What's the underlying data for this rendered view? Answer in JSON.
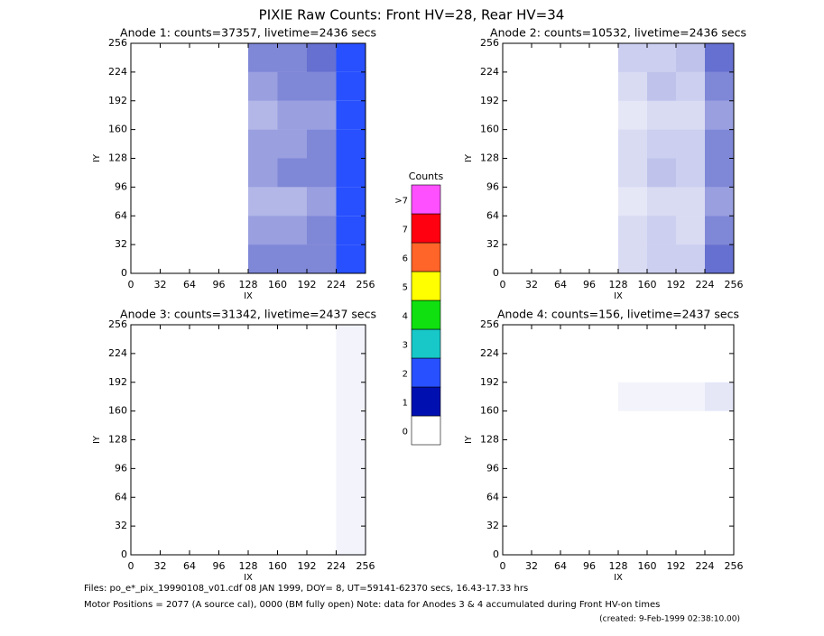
{
  "title": "PIXIE Raw Counts:  Front HV=28, Rear HV=34",
  "footer": [
    "Files: po_e*_pix_19990108_v01.cdf    08 JAN 1999, DOY=  8, UT=59141-62370 secs, 16.43-17.33 hrs",
    "Motor Positions = 2077 (A source cal), 0000 (BM fully open)    Note: data for Anodes 3 & 4 accumulated during Front HV-on times",
    "(created:  9-Feb-1999 02:38:10.00)"
  ],
  "chart_data": [
    {
      "type": "heatmap",
      "title": "Anode 1: counts=37357, livetime=2436 secs",
      "xlabel": "IX",
      "ylabel": "IY",
      "xlim": [
        0,
        256
      ],
      "ylim": [
        0,
        256
      ],
      "xticks": [
        0,
        32,
        64,
        96,
        128,
        160,
        192,
        224,
        256
      ],
      "yticks": [
        0,
        32,
        64,
        96,
        128,
        160,
        192,
        224,
        256
      ],
      "x_edges": [
        0,
        32,
        64,
        96,
        128,
        160,
        192,
        224,
        256
      ],
      "y_edges": [
        0,
        32,
        64,
        96,
        128,
        160,
        192,
        224,
        256
      ],
      "values": [
        [
          0,
          0,
          0,
          0,
          0.5,
          0.5,
          0.5,
          1.6
        ],
        [
          0,
          0,
          0,
          0,
          0.4,
          0.4,
          0.5,
          1.4
        ],
        [
          0,
          0,
          0,
          0,
          0.3,
          0.3,
          0.4,
          1.3
        ],
        [
          0,
          0,
          0,
          0,
          0.4,
          0.5,
          0.5,
          1.5
        ],
        [
          0,
          0,
          0,
          0,
          0.4,
          0.4,
          0.5,
          1.5
        ],
        [
          0,
          0,
          0,
          0,
          0.3,
          0.4,
          0.4,
          1.3
        ],
        [
          0,
          0,
          0,
          0,
          0.4,
          0.5,
          0.5,
          1.5
        ],
        [
          0,
          0,
          0,
          0,
          0.5,
          0.5,
          0.6,
          1.6
        ]
      ]
    },
    {
      "type": "heatmap",
      "title": "Anode 2: counts=10532, livetime=2436 secs",
      "xlabel": "IX",
      "ylabel": "IY",
      "xlim": [
        0,
        256
      ],
      "ylim": [
        0,
        256
      ],
      "xticks": [
        0,
        32,
        64,
        96,
        128,
        160,
        192,
        224,
        256
      ],
      "yticks": [
        0,
        32,
        64,
        96,
        128,
        160,
        192,
        224,
        256
      ],
      "x_edges": [
        0,
        32,
        64,
        96,
        128,
        160,
        192,
        224,
        256
      ],
      "y_edges": [
        0,
        32,
        64,
        96,
        128,
        160,
        192,
        224,
        256
      ],
      "values": [
        [
          0,
          0,
          0,
          0,
          0.15,
          0.2,
          0.2,
          0.6
        ],
        [
          0,
          0,
          0,
          0,
          0.15,
          0.2,
          0.15,
          0.5
        ],
        [
          0,
          0,
          0,
          0,
          0.1,
          0.15,
          0.15,
          0.4
        ],
        [
          0,
          0,
          0,
          0,
          0.15,
          0.25,
          0.2,
          0.5
        ],
        [
          0,
          0,
          0,
          0,
          0.15,
          0.2,
          0.2,
          0.5
        ],
        [
          0,
          0,
          0,
          0,
          0.1,
          0.15,
          0.15,
          0.4
        ],
        [
          0,
          0,
          0,
          0,
          0.15,
          0.25,
          0.2,
          0.5
        ],
        [
          0,
          0,
          0,
          0,
          0.2,
          0.2,
          0.25,
          0.6
        ]
      ]
    },
    {
      "type": "heatmap",
      "title": "Anode 3: counts=31342, livetime=2437 secs",
      "xlabel": "IX",
      "ylabel": "IY",
      "xlim": [
        0,
        256
      ],
      "ylim": [
        0,
        256
      ],
      "xticks": [
        0,
        32,
        64,
        96,
        128,
        160,
        192,
        224,
        256
      ],
      "yticks": [
        0,
        32,
        64,
        96,
        128,
        160,
        192,
        224,
        256
      ],
      "x_edges": [
        0,
        32,
        64,
        96,
        128,
        160,
        192,
        224,
        256
      ],
      "y_edges": [
        0,
        32,
        64,
        96,
        128,
        160,
        192,
        224,
        256
      ],
      "values": [
        [
          0,
          0,
          0,
          0,
          0,
          0,
          0,
          0.05
        ],
        [
          0,
          0,
          0,
          0,
          0,
          0,
          0,
          0.05
        ],
        [
          0,
          0,
          0,
          0,
          0,
          0,
          0,
          0.05
        ],
        [
          0,
          0,
          0,
          0,
          0,
          0,
          0,
          0.05
        ],
        [
          0,
          0,
          0,
          0,
          0,
          0,
          0,
          0.05
        ],
        [
          0,
          0,
          0,
          0,
          0,
          0,
          0,
          0.05
        ],
        [
          0,
          0,
          0,
          0,
          0,
          0,
          0,
          0.05
        ],
        [
          0,
          0,
          0,
          0,
          0,
          0,
          0,
          0.05
        ]
      ]
    },
    {
      "type": "heatmap",
      "title": "Anode 4: counts=156, livetime=2437 secs",
      "xlabel": "IX",
      "ylabel": "IY",
      "xlim": [
        0,
        256
      ],
      "ylim": [
        0,
        256
      ],
      "xticks": [
        0,
        32,
        64,
        96,
        128,
        160,
        192,
        224,
        256
      ],
      "yticks": [
        0,
        32,
        64,
        96,
        128,
        160,
        192,
        224,
        256
      ],
      "x_edges": [
        0,
        32,
        64,
        96,
        128,
        160,
        192,
        224,
        256
      ],
      "y_edges": [
        0,
        32,
        64,
        96,
        128,
        160,
        192,
        224,
        256
      ],
      "values": [
        [
          0,
          0,
          0,
          0,
          0,
          0,
          0,
          0
        ],
        [
          0,
          0,
          0,
          0,
          0,
          0,
          0,
          0
        ],
        [
          0,
          0,
          0,
          0,
          0,
          0,
          0,
          0
        ],
        [
          0,
          0,
          0,
          0,
          0,
          0,
          0,
          0
        ],
        [
          0,
          0,
          0,
          0,
          0,
          0,
          0,
          0
        ],
        [
          0,
          0,
          0,
          0,
          0.05,
          0.05,
          0.05,
          0.1
        ],
        [
          0,
          0,
          0,
          0,
          0,
          0,
          0,
          0
        ],
        [
          0,
          0,
          0,
          0,
          0,
          0,
          0,
          0
        ]
      ]
    },
    {
      "type": "colorbar",
      "title": "Counts",
      "ticks": [
        0,
        1,
        2,
        3,
        4,
        5,
        6,
        7,
        {
          "value": 8,
          "label": ">7"
        }
      ],
      "colors": [
        "#ffffff",
        "#0010b0",
        "#2850ff",
        "#18c8c8",
        "#10e010",
        "#ffff00",
        "#ff6428",
        "#ff0010",
        "#ff50ff"
      ]
    }
  ]
}
